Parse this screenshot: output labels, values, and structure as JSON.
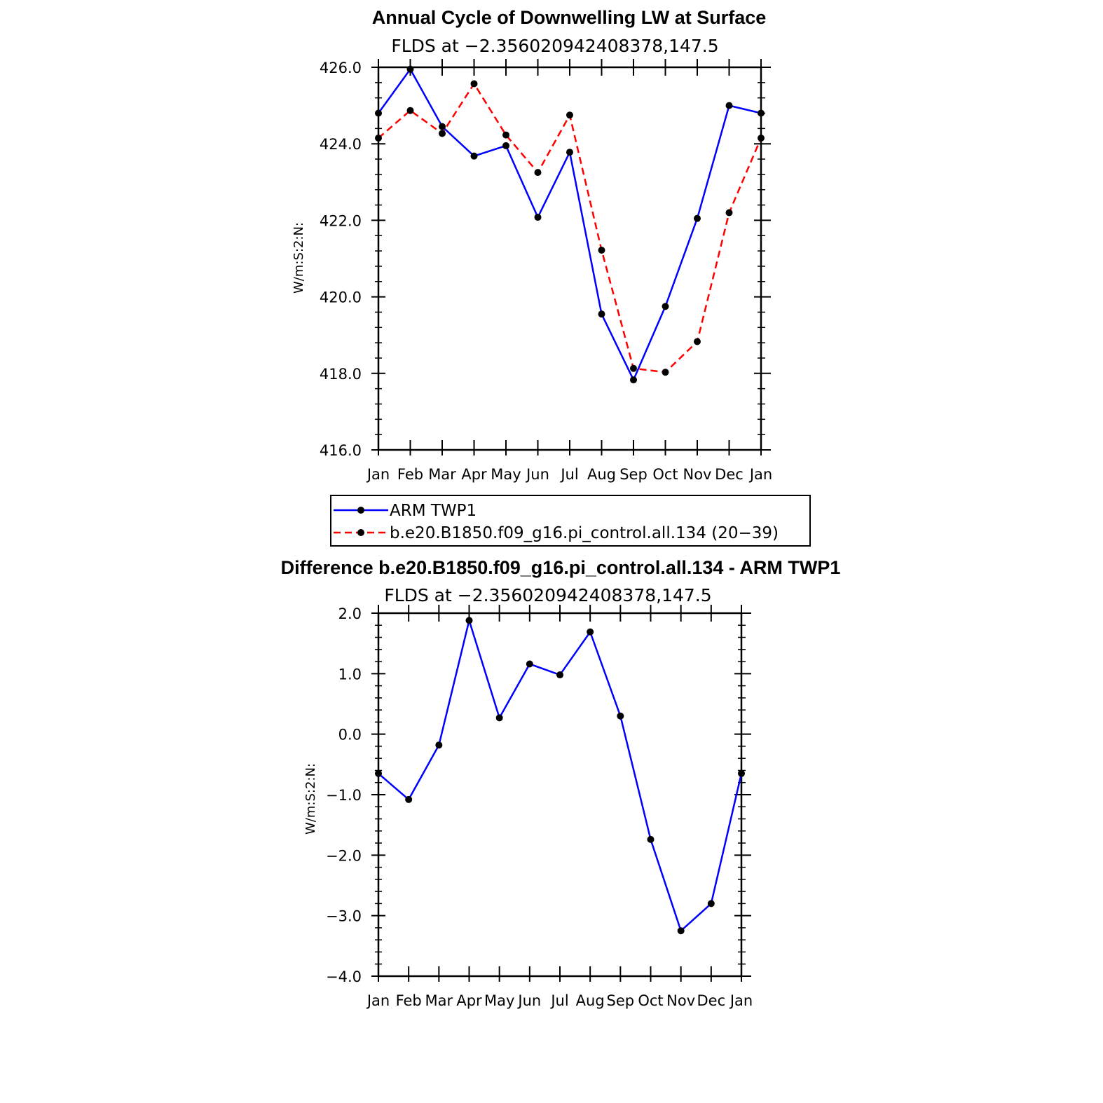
{
  "chart_data": [
    {
      "type": "line",
      "title": "Annual Cycle of Downwelling LW at Surface",
      "subtitle": "FLDS at −2.356020942408378,147.5",
      "ylabel": "W/m:S:2:N:",
      "xlabel": "",
      "categories": [
        "Jan",
        "Feb",
        "Mar",
        "Apr",
        "May",
        "Jun",
        "Jul",
        "Aug",
        "Sep",
        "Oct",
        "Nov",
        "Dec",
        "Jan"
      ],
      "ylim": [
        416.0,
        426.0
      ],
      "yticks": [
        416.0,
        418.0,
        420.0,
        422.0,
        424.0,
        426.0
      ],
      "ytick_labels": [
        "416.0",
        "418.0",
        "420.0",
        "422.0",
        "424.0",
        "426.0"
      ],
      "series": [
        {
          "name": "ARM TWP1",
          "color": "#0000ff",
          "dash": "solid",
          "values": [
            424.8,
            425.95,
            424.45,
            423.68,
            423.95,
            422.08,
            423.78,
            419.55,
            417.83,
            419.75,
            422.05,
            425.0,
            424.8
          ]
        },
        {
          "name": "b.e20.B1850.f09_g16.pi_control.all.134 (20−39)",
          "color": "#ff0000",
          "dash": "dashed",
          "values": [
            424.15,
            424.87,
            424.27,
            425.57,
            424.23,
            423.25,
            424.75,
            421.22,
            418.13,
            418.03,
            418.83,
            422.2,
            424.15
          ]
        }
      ],
      "legend": "below"
    },
    {
      "type": "line",
      "title": "Difference b.e20.B1850.f09_g16.pi_control.all.134 - ARM TWP1",
      "subtitle": "FLDS at −2.356020942408378,147.5",
      "ylabel": "W/m:S:2:N:",
      "xlabel": "",
      "categories": [
        "Jan",
        "Feb",
        "Mar",
        "Apr",
        "May",
        "Jun",
        "Jul",
        "Aug",
        "Sep",
        "Oct",
        "Nov",
        "Dec",
        "Jan"
      ],
      "ylim": [
        -4.0,
        2.0
      ],
      "yticks": [
        -4.0,
        -3.0,
        -2.0,
        -1.0,
        0.0,
        1.0,
        2.0
      ],
      "ytick_labels": [
        "−4.0",
        "−3.0",
        "−2.0",
        "−1.0",
        "0.0",
        "1.0",
        "2.0"
      ],
      "series": [
        {
          "name": "",
          "color": "#0000ff",
          "dash": "solid",
          "values": [
            -0.65,
            -1.08,
            -0.18,
            1.88,
            0.27,
            1.16,
            0.98,
            1.69,
            0.3,
            -1.74,
            -3.25,
            -2.8,
            -0.65
          ]
        }
      ]
    }
  ]
}
